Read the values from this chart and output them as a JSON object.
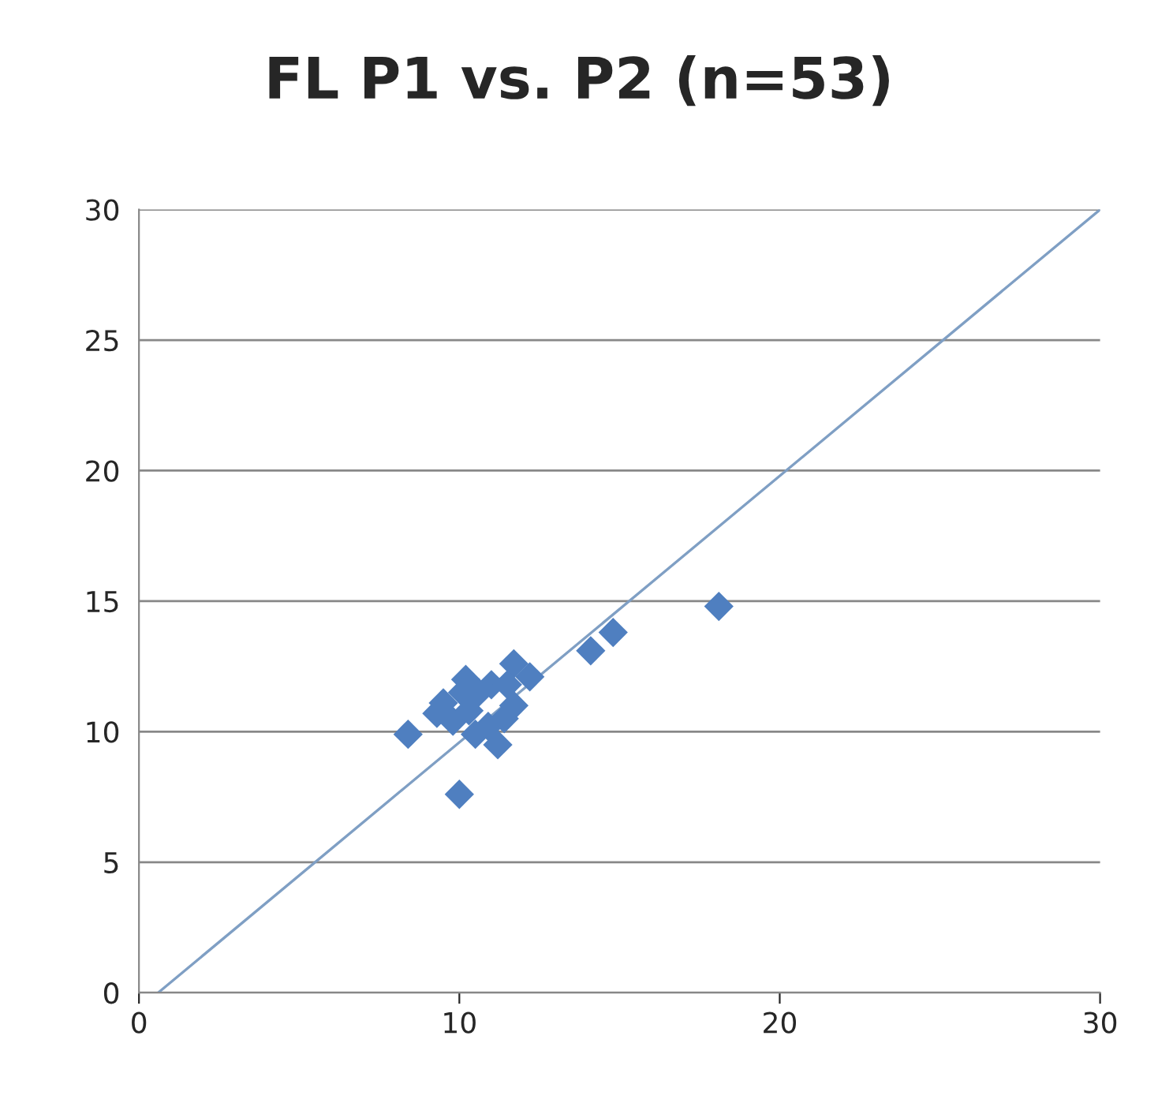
{
  "chart_data": {
    "type": "scatter",
    "title": "FL P1 vs. P2 (n=53)",
    "xlim": [
      0,
      30
    ],
    "ylim": [
      0,
      30
    ],
    "xticks": [
      0,
      10,
      20,
      30
    ],
    "yticks": [
      0,
      5,
      10,
      15,
      20,
      25,
      30
    ],
    "grid": "y",
    "marker": "diamond",
    "series": [
      {
        "color": "#4f7fc0",
        "x": [
          8.4,
          10.0,
          18.1,
          14.8,
          14.1,
          11.7,
          10.2,
          9.5,
          9.3,
          9.8,
          11.2,
          10.5,
          11.4,
          10.3,
          11.0,
          10.6,
          11.5,
          12.2,
          10.1,
          10.9,
          11.7
        ],
        "values": [
          9.9,
          7.6,
          14.8,
          13.8,
          13.1,
          12.6,
          12.0,
          11.1,
          10.7,
          10.4,
          9.5,
          9.9,
          10.5,
          10.8,
          11.8,
          11.5,
          11.8,
          12.1,
          11.5,
          10.2,
          11.0
        ]
      },
      {
        "type": "line",
        "color": "#7f9fc4",
        "marker": "none",
        "x": [
          0.6,
          30
        ],
        "values": [
          0,
          30
        ]
      }
    ]
  }
}
